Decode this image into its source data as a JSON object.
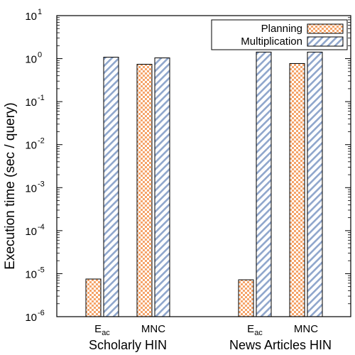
{
  "chart_data": {
    "type": "bar",
    "ylabel": "Execution time (sec / query)",
    "yscale": "log",
    "ylim": [
      1e-06,
      10
    ],
    "yticks": [
      {
        "base": "10",
        "exp": "-6"
      },
      {
        "base": "10",
        "exp": "-5"
      },
      {
        "base": "10",
        "exp": "-4"
      },
      {
        "base": "10",
        "exp": "-3"
      },
      {
        "base": "10",
        "exp": "-2"
      },
      {
        "base": "10",
        "exp": "-1"
      },
      {
        "base": "10",
        "exp": "0"
      },
      {
        "base": "10",
        "exp": "1"
      }
    ],
    "legend_position": "top-right",
    "series": [
      {
        "name": "Planning",
        "color": "#f5a46a",
        "pattern": "checkerboard"
      },
      {
        "name": "Multiplication",
        "color": "#8fa6cc",
        "pattern": "diagonal-hatch"
      }
    ],
    "groups": [
      {
        "label": "Scholarly HIN",
        "categories": [
          {
            "label_base": "E",
            "label_sub": "ac",
            "values": [
              7.5e-06,
              1.08
            ]
          },
          {
            "label_base": "MNC",
            "label_sub": "",
            "values": [
              0.74,
              1.04
            ]
          }
        ]
      },
      {
        "label": "News Articles HIN",
        "categories": [
          {
            "label_base": "E",
            "label_sub": "ac",
            "values": [
              7.2e-06,
              1.42
            ]
          },
          {
            "label_base": "MNC",
            "label_sub": "",
            "values": [
              0.77,
              1.42
            ]
          }
        ]
      }
    ]
  }
}
